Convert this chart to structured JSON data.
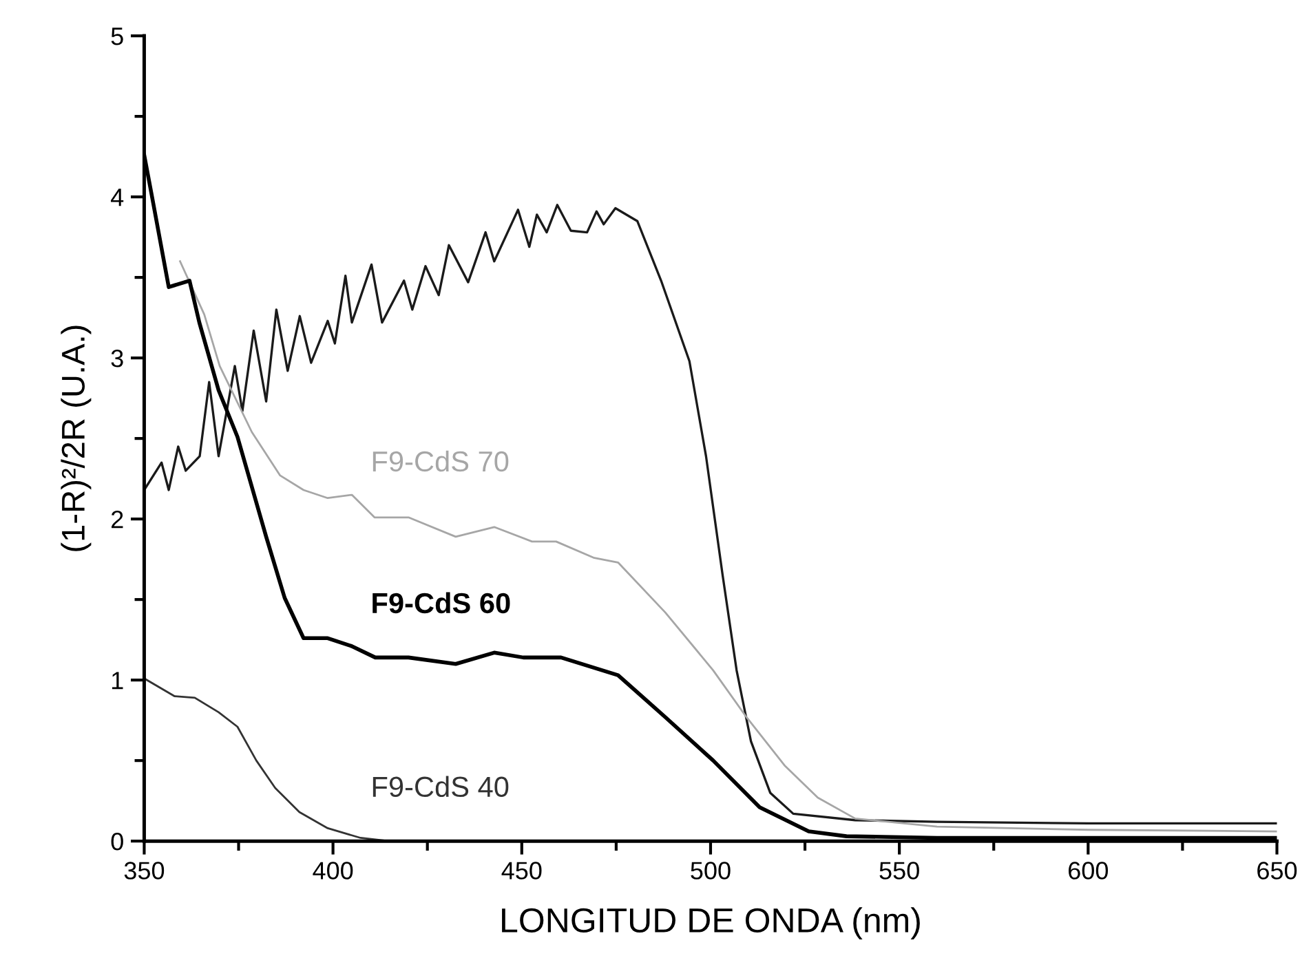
{
  "chart_data": {
    "type": "line",
    "xlabel": "LONGITUD DE ONDA (nm)",
    "ylabel": "(1-R)²/2R (U.A.)",
    "xlim": [
      350,
      650
    ],
    "xticks": [
      350,
      {
        "value": 375,
        "label": null
      },
      400,
      {
        "value": 425,
        "label": null
      },
      450,
      {
        "value": 475,
        "label": null
      },
      500,
      {
        "value": 525,
        "label": null
      },
      550,
      {
        "value": 575,
        "label": null
      },
      600,
      {
        "value": 625,
        "label": null
      },
      650
    ],
    "ylim": [
      0,
      5
    ],
    "yticks": [
      0,
      {
        "value": 0.5,
        "label": null
      },
      1,
      {
        "value": 1.5,
        "label": null
      },
      2,
      {
        "value": 2.5,
        "label": null
      },
      3,
      {
        "value": 3.5,
        "label": null
      },
      4,
      {
        "value": 4.5,
        "label": null
      },
      5
    ],
    "grid": false,
    "legend": false,
    "marker": "none",
    "line_style": "solid",
    "series": [
      {
        "color": "#1a1a1a",
        "x": [
          350,
          354.6,
          356.5,
          359,
          361,
          364.7,
          367.2,
          369.7,
          374,
          376,
          379,
          382.3,
          385,
          388,
          391.2,
          394.2,
          398.6,
          400.5,
          403.3,
          405,
          410.2,
          413,
          418.8,
          421,
          424.5,
          428,
          430.7,
          435.8,
          440.4,
          442.7,
          449,
          452,
          454,
          456.6,
          459.4,
          463,
          467.3,
          469.8,
          471.7,
          474.8,
          480.6,
          486.9,
          494.4,
          498.8,
          503.2,
          506.9,
          510.7,
          515.8,
          521.9,
          538.3,
          560,
          600,
          650
        ],
        "values": [
          2.18,
          2.35,
          2.18,
          2.45,
          2.3,
          2.39,
          2.85,
          2.39,
          2.95,
          2.67,
          3.17,
          2.73,
          3.3,
          2.92,
          3.26,
          2.97,
          3.23,
          3.09,
          3.51,
          3.22,
          3.58,
          3.22,
          3.48,
          3.3,
          3.57,
          3.39,
          3.7,
          3.47,
          3.78,
          3.6,
          3.92,
          3.69,
          3.89,
          3.78,
          3.95,
          3.79,
          3.78,
          3.91,
          3.83,
          3.93,
          3.85,
          3.48,
          2.98,
          2.39,
          1.65,
          1.06,
          0.62,
          0.3,
          0.17,
          0.13,
          0.12,
          0.11,
          0.11
        ]
      },
      {
        "name": "F9-CdS 70",
        "color": "#a6a6a6",
        "x": [
          359.5,
          365.9,
          370,
          378.5,
          386,
          392.2,
          398.6,
          405,
          411,
          420,
          432.5,
          442.7,
          452.7,
          459.1,
          469,
          475.5,
          488,
          500.7,
          509.5,
          519.6,
          528.4,
          538.3,
          560,
          600,
          650
        ],
        "values": [
          3.6,
          3.27,
          2.95,
          2.54,
          2.27,
          2.18,
          2.13,
          2.15,
          2.01,
          2.01,
          1.89,
          1.95,
          1.86,
          1.86,
          1.76,
          1.73,
          1.42,
          1.06,
          0.77,
          0.47,
          0.27,
          0.14,
          0.09,
          0.07,
          0.06
        ]
      },
      {
        "name": "F9-CdS 60",
        "color": "#000000",
        "x": [
          350,
          352,
          356.5,
          362,
          364.6,
          369.7,
          374.7,
          382.3,
          387.2,
          392.2,
          398.6,
          405,
          411.2,
          420,
          432.5,
          442.7,
          450.4,
          460.4,
          475.5,
          488,
          500.7,
          513,
          526,
          536,
          560,
          600,
          650
        ],
        "values": [
          4.26,
          4.01,
          3.44,
          3.48,
          3.22,
          2.8,
          2.51,
          1.89,
          1.51,
          1.26,
          1.26,
          1.21,
          1.14,
          1.14,
          1.1,
          1.17,
          1.14,
          1.14,
          1.03,
          0.77,
          0.5,
          0.21,
          0.06,
          0.03,
          0.02,
          0.02,
          0.02
        ]
      },
      {
        "name": "F9-CdS 40",
        "color": "#333333",
        "x": [
          350,
          358,
          363.4,
          369.7,
          374.7,
          379.7,
          384.7,
          391.1,
          398.6,
          407.3,
          415
        ],
        "values": [
          1.01,
          0.9,
          0.89,
          0.8,
          0.71,
          0.5,
          0.33,
          0.18,
          0.08,
          0.02,
          0
        ]
      }
    ]
  }
}
